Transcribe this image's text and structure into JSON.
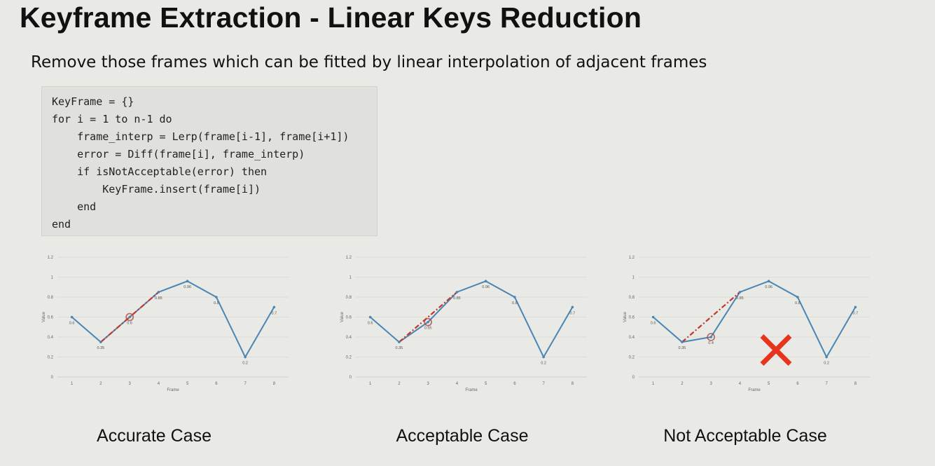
{
  "title": "Keyframe Extraction - Linear Keys Reduction",
  "subtitle": "Remove those frames which can be fitted by linear interpolation of adjacent frames",
  "code": [
    "KeyFrame = {}",
    "for i = 1 to n-1 do",
    "    frame_interp = Lerp(frame[i-1], frame[i+1])",
    "    error = Diff(frame[i], frame_interp)",
    "    if isNotAcceptable(error) then",
    "        KeyFrame.insert(frame[i])",
    "    end",
    "end"
  ],
  "colors": {
    "line": "#4a86b4",
    "interp": "#c0392b",
    "cross": "#e8341c",
    "highlight": "#b0443c"
  },
  "chart_data": [
    {
      "type": "line",
      "x": [
        1,
        2,
        3,
        4,
        5,
        6,
        7,
        8
      ],
      "series": [
        {
          "values": [
            0.6,
            0.35,
            0.6,
            0.85,
            0.96,
            0.8,
            0.2,
            0.7
          ]
        }
      ],
      "labels": [
        "0.6",
        "0.35",
        "0.6",
        "0.85",
        "0.96",
        "0.8",
        "0.2",
        "0.7"
      ],
      "interp": [
        [
          2,
          0.35
        ],
        [
          4,
          0.85
        ]
      ],
      "highlight": [
        3,
        0.6
      ],
      "xlabel": "Frame",
      "ylabel": "Value",
      "ylim": [
        0,
        1.2
      ],
      "yticks": [
        "0",
        "0.2",
        "0.4",
        "0.6",
        "0.8",
        "1",
        "1.2"
      ],
      "cross": false
    },
    {
      "type": "line",
      "x": [
        1,
        2,
        3,
        4,
        5,
        6,
        7,
        8
      ],
      "series": [
        {
          "values": [
            0.6,
            0.35,
            0.55,
            0.85,
            0.96,
            0.8,
            0.2,
            0.7
          ]
        }
      ],
      "labels": [
        "0.6",
        "0.35",
        "0.55",
        "0.85",
        "0.96",
        "0.8",
        "0.2",
        "0.7"
      ],
      "interp": [
        [
          2,
          0.35
        ],
        [
          4,
          0.85
        ]
      ],
      "highlight": [
        3,
        0.55
      ],
      "xlabel": "Frame",
      "ylabel": "Value",
      "ylim": [
        0,
        1.2
      ],
      "yticks": [
        "0",
        "0.2",
        "0.4",
        "0.6",
        "0.8",
        "1",
        "1.2"
      ],
      "cross": false
    },
    {
      "type": "line",
      "x": [
        1,
        2,
        3,
        4,
        5,
        6,
        7,
        8
      ],
      "series": [
        {
          "values": [
            0.6,
            0.35,
            0.4,
            0.85,
            0.96,
            0.8,
            0.2,
            0.7
          ]
        }
      ],
      "labels": [
        "0.6",
        "0.35",
        "0.4",
        "0.85",
        "0.96",
        "0.8",
        "0.2",
        "0.7"
      ],
      "interp": [
        [
          2,
          0.35
        ],
        [
          4,
          0.85
        ]
      ],
      "highlight": [
        3,
        0.4
      ],
      "xlabel": "Frame",
      "ylabel": "Value",
      "ylim": [
        0,
        1.2
      ],
      "yticks": [
        "0",
        "0.2",
        "0.4",
        "0.6",
        "0.8",
        "1",
        "1.2"
      ],
      "cross": true
    }
  ],
  "captions": [
    "Accurate Case",
    "Acceptable Case",
    "Not Acceptable Case"
  ]
}
